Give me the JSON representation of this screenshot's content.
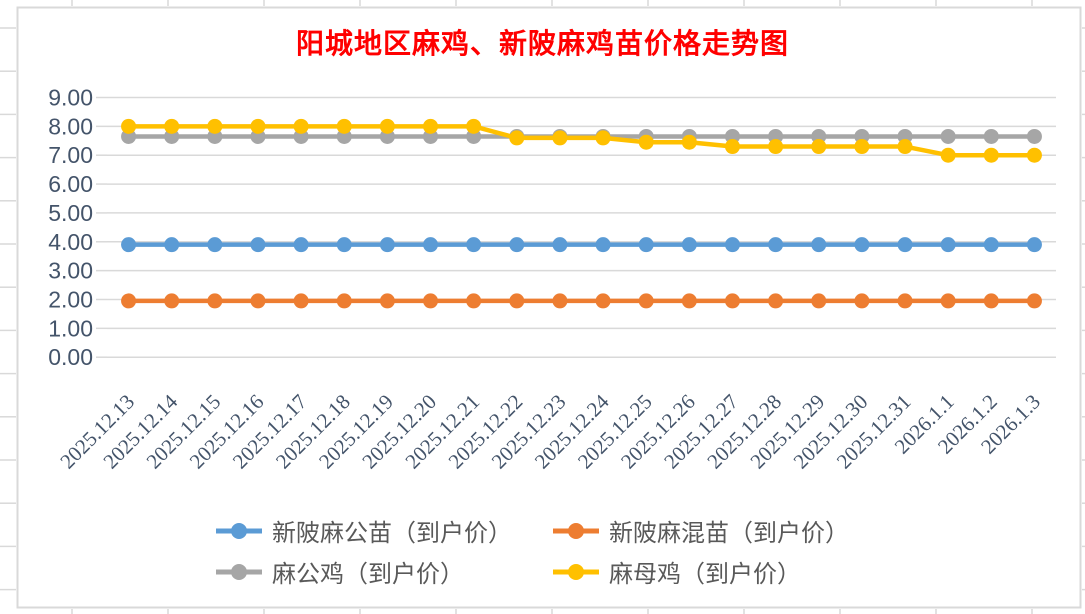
{
  "chart": {
    "background_color": "#FFFFFF",
    "border_color": "#D9D9D9",
    "gridline_color": "#D9D9D9",
    "axis_text_color": "#44546A",
    "legend_text_color": "#595959"
  },
  "chart_data": {
    "type": "line",
    "title": "阳城地区麻鸡、新陂麻鸡苗价格走势图",
    "title_color": "#FF0000",
    "xlabel": "",
    "ylabel": "",
    "ylim": [
      0,
      9
    ],
    "ytick_labels": [
      "0.00",
      "1.00",
      "2.00",
      "3.00",
      "4.00",
      "5.00",
      "6.00",
      "7.00",
      "8.00",
      "9.00"
    ],
    "grid": true,
    "legend_position": "bottom",
    "categories": [
      "2025.12.13",
      "2025.12.14",
      "2025.12.15",
      "2025.12.16",
      "2025.12.17",
      "2025.12.18",
      "2025.12.19",
      "2025.12.20",
      "2025.12.21",
      "2025.12.22",
      "2025.12.23",
      "2025.12.24",
      "2025.12.25",
      "2025.12.26",
      "2025.12.27",
      "2025.12.28",
      "2025.12.29",
      "2025.12.30",
      "2025.12.31",
      "2026.1.1",
      "2026.1.2",
      "2026.1.3"
    ],
    "series": [
      {
        "name": "新陂麻公苗（到户价）",
        "color": "#5B9BD5",
        "values": [
          3.9,
          3.9,
          3.9,
          3.9,
          3.9,
          3.9,
          3.9,
          3.9,
          3.9,
          3.9,
          3.9,
          3.9,
          3.9,
          3.9,
          3.9,
          3.9,
          3.9,
          3.9,
          3.9,
          3.9,
          3.9,
          3.9
        ]
      },
      {
        "name": "新陂麻混苗（到户价）",
        "color": "#ED7D31",
        "values": [
          1.95,
          1.95,
          1.95,
          1.95,
          1.95,
          1.95,
          1.95,
          1.95,
          1.95,
          1.95,
          1.95,
          1.95,
          1.95,
          1.95,
          1.95,
          1.95,
          1.95,
          1.95,
          1.95,
          1.95,
          1.95,
          1.95
        ]
      },
      {
        "name": "麻公鸡（到户价）",
        "color": "#A6A6A6",
        "values": [
          7.65,
          7.65,
          7.65,
          7.65,
          7.65,
          7.65,
          7.65,
          7.65,
          7.65,
          7.65,
          7.65,
          7.65,
          7.65,
          7.65,
          7.65,
          7.65,
          7.65,
          7.65,
          7.65,
          7.65,
          7.65,
          7.65
        ]
      },
      {
        "name": "麻母鸡（到户价）",
        "color": "#FFC000",
        "values": [
          8.0,
          8.0,
          8.0,
          8.0,
          8.0,
          8.0,
          8.0,
          8.0,
          8.0,
          7.6,
          7.6,
          7.6,
          7.45,
          7.45,
          7.3,
          7.3,
          7.3,
          7.3,
          7.3,
          7.0,
          7.0,
          7.0
        ]
      }
    ]
  }
}
